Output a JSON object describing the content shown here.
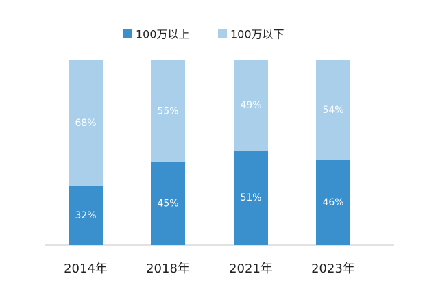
{
  "chart_data": {
    "type": "stacked_bar",
    "categories": [
      "2014年",
      "2018年",
      "2021年",
      "2023年"
    ],
    "series": [
      {
        "name": "100万以上",
        "color": "#3a8fcd",
        "values": [
          32,
          45,
          51,
          46
        ],
        "value_labels": [
          "32%",
          "45%",
          "51%",
          "46%"
        ]
      },
      {
        "name": "100万以下",
        "color": "#a9cfea",
        "values": [
          68,
          55,
          49,
          54
        ],
        "value_labels": [
          "68%",
          "55%",
          "49%",
          "54%"
        ]
      }
    ],
    "legend": "top"
  }
}
